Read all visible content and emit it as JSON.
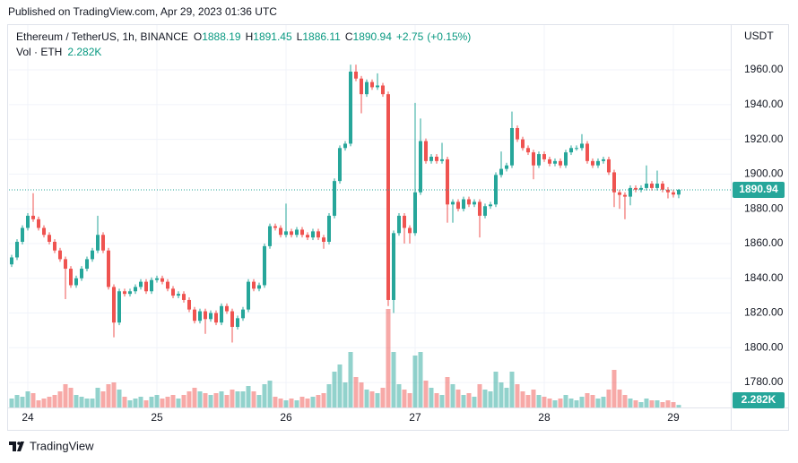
{
  "header": {
    "published": "Published on TradingView.com, Apr 29, 2023 01:36 UTC",
    "brand": "TradingView"
  },
  "chart_data": {
    "type": "candlestick",
    "symbol": "Ethereum / TetherUS, 1h, BINANCE",
    "ohlc_letters": [
      "O",
      "H",
      "L",
      "C"
    ],
    "change": "+2.75",
    "change_pct": "(+0.15%)",
    "volume_title": "Vol · ETH",
    "volume_label": "2.282K",
    "currency": "USDT",
    "up_color": "#26a69a",
    "down_color": "#ef5350",
    "grid": true,
    "last_price_line": true,
    "open": [
      1848,
      1852,
      1861,
      1869,
      1876,
      1874,
      1869,
      1865,
      1861,
      1856,
      1851,
      1845.5,
      1836,
      1840,
      1845.5,
      1851,
      1856,
      1865,
      1856,
      1835,
      1814.5,
      1832.5,
      1831,
      1832.5,
      1835,
      1838,
      1832.5,
      1839,
      1840,
      1838,
      1834,
      1830,
      1831,
      1827.5,
      1822,
      1815.5,
      1821,
      1816.5,
      1820,
      1814.5,
      1824,
      1821,
      1812,
      1817,
      1822,
      1838,
      1834,
      1836,
      1858.5,
      1870,
      1869,
      1865,
      1867,
      1865,
      1868,
      1865,
      1863.5,
      1867,
      1863.5,
      1861,
      1876,
      1896,
      1915,
      1917.5,
      1959,
      1955,
      1946,
      1953,
      1950,
      1951,
      1946,
      1827.5,
      1866,
      1876,
      1869,
      1866,
      1889.5,
      1919,
      1907.5,
      1910,
      1907.5,
      1908.5,
      1882.5,
      1884,
      1880,
      1885.5,
      1882.5,
      1884,
      1876,
      1881.5,
      1882.5,
      1899.5,
      1903,
      1905,
      1926.5,
      1920,
      1915,
      1912.5,
      1905,
      1911.5,
      1908.5,
      1906,
      1907.5,
      1905,
      1912.5,
      1915,
      1915,
      1917.5,
      1907.5,
      1905,
      1907.5,
      1908.5,
      1901,
      1889.5,
      1888,
      1887,
      1892,
      1891,
      1892,
      1894.5,
      1892,
      1894.5,
      1891,
      1889.5,
      1888.19
    ],
    "high": [
      1853.5,
      1862.5,
      1870.5,
      1877.5,
      1889,
      1875.5,
      1870.5,
      1866.5,
      1862.5,
      1857.5,
      1852.5,
      1847,
      1841.5,
      1847,
      1852.5,
      1857.5,
      1876,
      1866.5,
      1857.5,
      1836.5,
      1834,
      1834,
      1834,
      1836.5,
      1839.5,
      1839.5,
      1840.5,
      1841.5,
      1841.5,
      1839.5,
      1835.5,
      1832.5,
      1832.5,
      1829,
      1823.5,
      1822.5,
      1822.5,
      1821.5,
      1821.5,
      1825.5,
      1825.5,
      1822.5,
      1818.5,
      1823.5,
      1839.5,
      1839.5,
      1837.5,
      1860,
      1871.5,
      1871.5,
      1870.5,
      1883,
      1868.5,
      1869.5,
      1869.5,
      1866.5,
      1868.5,
      1868.5,
      1865,
      1877.5,
      1897.5,
      1916.5,
      1919,
      1963,
      1963,
      1956.5,
      1954.5,
      1954.5,
      1958,
      1952.5,
      1947.5,
      1867.5,
      1877.5,
      1877.5,
      1870.5,
      1941,
      1932,
      1920.5,
      1911.5,
      1911.5,
      1918,
      1910,
      1885.5,
      1885.5,
      1887,
      1887,
      1885.5,
      1885.5,
      1883,
      1884,
      1901,
      1913,
      1906.5,
      1936,
      1928,
      1921.5,
      1916.5,
      1914,
      1913,
      1913,
      1910,
      1909,
      1909,
      1914,
      1916.5,
      1916.5,
      1923,
      1919,
      1909,
      1909,
      1910,
      1910,
      1902.5,
      1891,
      1889.5,
      1893.5,
      1893.5,
      1893.5,
      1905,
      1896,
      1902,
      1896,
      1892.5,
      1891,
      1891.45
    ],
    "low": [
      1846.5,
      1850.5,
      1859.5,
      1867.5,
      1872.5,
      1867.5,
      1863.5,
      1859.5,
      1854.5,
      1849.5,
      1828,
      1834.5,
      1834.5,
      1838.5,
      1844,
      1849.5,
      1854.5,
      1854.5,
      1833.5,
      1806,
      1813,
      1829.5,
      1829.5,
      1831,
      1833.5,
      1831,
      1831,
      1837.5,
      1836.5,
      1832.5,
      1828.5,
      1828.5,
      1826,
      1820.5,
      1814,
      1814,
      1808,
      1815,
      1813,
      1813,
      1819.5,
      1803,
      1810.5,
      1815.5,
      1820.5,
      1832.5,
      1832.5,
      1834.5,
      1857,
      1867.5,
      1863.5,
      1863.5,
      1863.5,
      1863.5,
      1863.5,
      1862,
      1862,
      1862,
      1857,
      1859.5,
      1874.5,
      1894.5,
      1913.5,
      1916,
      1953.5,
      1935,
      1944.5,
      1948.5,
      1948.5,
      1944.5,
      1824,
      1820,
      1864.5,
      1860,
      1860,
      1864.5,
      1888,
      1906,
      1906,
      1906,
      1906,
      1872,
      1872,
      1878.5,
      1878.5,
      1881,
      1881,
      1863.5,
      1874.5,
      1880,
      1881,
      1898,
      1901.5,
      1903.5,
      1918.5,
      1913.5,
      1911,
      1897,
      1903.5,
      1907,
      1904.5,
      1904.5,
      1903.5,
      1903.5,
      1911,
      1913.5,
      1913.5,
      1906,
      1903.5,
      1903.5,
      1906,
      1899.5,
      1881,
      1880,
      1874,
      1882,
      1889.5,
      1889.5,
      1890.5,
      1890.5,
      1890.5,
      1889.5,
      1886,
      1886.5,
      1886.11
    ],
    "close": [
      1852,
      1861,
      1869,
      1876,
      1874,
      1869,
      1865,
      1861,
      1856,
      1851,
      1845.5,
      1836,
      1840,
      1845.5,
      1851,
      1856,
      1865,
      1856,
      1835,
      1814.5,
      1832.5,
      1831,
      1832.5,
      1835,
      1838,
      1832.5,
      1839,
      1840,
      1838,
      1834,
      1830,
      1831,
      1827.5,
      1822,
      1815.5,
      1821,
      1816.5,
      1820,
      1814.5,
      1824,
      1821,
      1812,
      1817,
      1822,
      1838,
      1834,
      1836,
      1858.5,
      1870,
      1869,
      1865,
      1867,
      1865,
      1868,
      1865,
      1863.5,
      1867,
      1863.5,
      1861,
      1876,
      1896,
      1915,
      1917.5,
      1959,
      1955,
      1946,
      1953,
      1950,
      1951,
      1946,
      1827.5,
      1866,
      1876,
      1869,
      1866,
      1889.5,
      1919,
      1907.5,
      1910,
      1907.5,
      1908.5,
      1882.5,
      1884,
      1880,
      1885.5,
      1882.5,
      1884,
      1876,
      1881.5,
      1882.5,
      1899.5,
      1903,
      1905,
      1926.5,
      1920,
      1915,
      1912.5,
      1905,
      1911.5,
      1908.5,
      1906,
      1907.5,
      1905,
      1912.5,
      1915,
      1915,
      1917.5,
      1907.5,
      1905,
      1907.5,
      1908.5,
      1901,
      1889.5,
      1888,
      1887,
      1892,
      1891,
      1892,
      1894.5,
      1892,
      1894.5,
      1891,
      1889.5,
      1888.19,
      1890.94
    ],
    "volume": [
      8000,
      11200,
      9600,
      14400,
      12800,
      6400,
      8000,
      9600,
      11200,
      14400,
      20800,
      17600,
      11200,
      9600,
      8000,
      8000,
      17600,
      14400,
      20800,
      22400,
      16000,
      9600,
      6400,
      8000,
      9600,
      6400,
      9600,
      11200,
      8000,
      9600,
      11200,
      8000,
      11200,
      14400,
      17600,
      14400,
      12800,
      11200,
      12800,
      14400,
      11200,
      16000,
      14400,
      14400,
      19200,
      14400,
      11200,
      20800,
      24000,
      9600,
      8000,
      6400,
      8000,
      6400,
      9600,
      8000,
      9600,
      11200,
      12800,
      20800,
      32000,
      38400,
      22400,
      49600,
      27200,
      22400,
      16000,
      14400,
      12800,
      17600,
      88000,
      49600,
      20800,
      16000,
      12800,
      46400,
      49600,
      24000,
      17600,
      12800,
      11200,
      27200,
      20800,
      16000,
      11200,
      12800,
      9600,
      20800,
      16000,
      14400,
      32000,
      22400,
      17600,
      32000,
      20800,
      14400,
      11200,
      16000,
      11200,
      9600,
      8000,
      6400,
      8000,
      11200,
      8000,
      6400,
      9600,
      12800,
      11200,
      8000,
      9600,
      16000,
      33600,
      16000,
      11200,
      8000,
      6400,
      4800,
      8000,
      6400,
      6400,
      4800,
      6400,
      4800,
      2282
    ],
    "vlim": [
      0,
      96000
    ],
    "xlim": [
      -0.5,
      133.67
    ],
    "xticks": [
      {
        "value": 3,
        "label": "24"
      },
      {
        "value": 27,
        "label": "25"
      },
      {
        "value": 51,
        "label": "26"
      },
      {
        "value": 75,
        "label": "27"
      },
      {
        "value": 99,
        "label": "28"
      },
      {
        "value": 123,
        "label": "29"
      }
    ],
    "ylim": [
      1765.6,
      1985.8
    ],
    "yticks": [
      {
        "value": 1780,
        "label": "1780.00"
      },
      {
        "value": 1800,
        "label": "1800.00"
      },
      {
        "value": 1820,
        "label": "1820.00"
      },
      {
        "value": 1840,
        "label": "1840.00"
      },
      {
        "value": 1860,
        "label": "1860.00"
      },
      {
        "value": 1880,
        "label": "1880.00"
      },
      {
        "value": 1900,
        "label": "1900.00"
      },
      {
        "value": 1920,
        "label": "1920.00"
      },
      {
        "value": 1940,
        "label": "1940.00"
      },
      {
        "value": 1960,
        "label": "1960.00"
      }
    ]
  }
}
